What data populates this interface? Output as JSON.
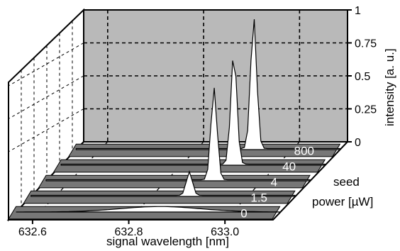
{
  "chart_data": {
    "type": "line",
    "projection": "3d-waterfall",
    "xlabel": "signal wavelength [nm]",
    "xticks": [
      "632.6",
      "632.8",
      "633.0"
    ],
    "xlim": [
      632.55,
      633.1
    ],
    "zlabel": "intensity [a. u.]",
    "zticks": [
      "0",
      "0.25",
      "0.5",
      "0.75",
      "1"
    ],
    "zlim": [
      0,
      1
    ],
    "depth_label_line1": "seed",
    "depth_label_line2": "power [µW]",
    "series": [
      {
        "name": "0",
        "peak_x": 632.85,
        "peak_y": 0.02
      },
      {
        "name": "1.5",
        "peak_x": 632.88,
        "peak_y": 0.18
      },
      {
        "name": "4",
        "peak_x": 632.9,
        "peak_y": 0.7
      },
      {
        "name": "40",
        "peak_x": 632.91,
        "peak_y": 0.85
      },
      {
        "name": "800",
        "peak_x": 632.92,
        "peak_y": 1.0
      }
    ],
    "grid": true,
    "colors": {
      "back_panel": "#b9b9b9",
      "strips": "#777777",
      "trace_fill": "#ffffff",
      "grid": "#000000"
    }
  }
}
